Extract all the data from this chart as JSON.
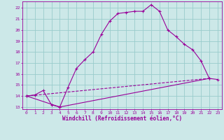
{
  "background_color": "#cce8e8",
  "grid_color": "#99cccc",
  "line_color": "#990099",
  "xlim": [
    -0.5,
    23.5
  ],
  "ylim": [
    12.8,
    22.6
  ],
  "xtick_labels": [
    "0",
    "1",
    "2",
    "3",
    "4",
    "5",
    "6",
    "7",
    "8",
    "9",
    "10",
    "11",
    "12",
    "13",
    "14",
    "15",
    "16",
    "17",
    "18",
    "19",
    "20",
    "21",
    "22",
    "23"
  ],
  "xtick_positions": [
    0,
    1,
    2,
    3,
    4,
    5,
    6,
    7,
    8,
    9,
    10,
    11,
    12,
    13,
    14,
    15,
    16,
    17,
    18,
    19,
    20,
    21,
    22,
    23
  ],
  "ytick_positions": [
    13,
    14,
    15,
    16,
    17,
    18,
    19,
    20,
    21,
    22
  ],
  "xlabel": "Windchill (Refroidissement éolien,°C)",
  "line1_x": [
    0,
    1,
    2,
    3,
    4,
    5,
    6,
    7,
    8,
    9,
    10,
    11,
    12,
    13,
    14,
    15,
    16,
    17,
    18,
    19,
    20,
    21,
    22,
    23
  ],
  "line1_y": [
    14.0,
    14.1,
    14.5,
    13.2,
    13.0,
    14.8,
    16.5,
    17.3,
    18.0,
    19.6,
    20.8,
    21.5,
    21.6,
    21.7,
    21.7,
    22.3,
    21.7,
    20.0,
    19.4,
    18.7,
    18.2,
    17.2,
    15.6,
    15.5
  ],
  "line2_x": [
    0,
    4,
    22
  ],
  "line2_y": [
    14.0,
    13.0,
    15.6
  ],
  "line3_x": [
    0,
    22
  ],
  "line3_y": [
    14.0,
    15.6
  ]
}
